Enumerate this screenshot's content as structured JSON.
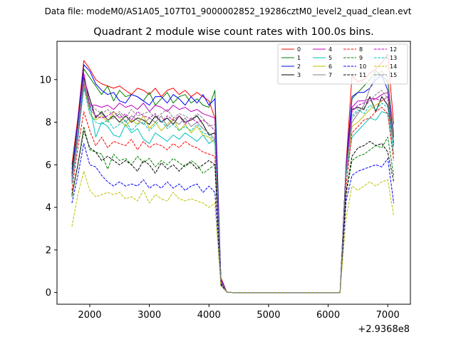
{
  "chart_data": {
    "type": "line",
    "suptitle": "Data file: modeM0/AS1A05_107T01_9000002852_19286cztM0_level2_quad_clean.evt",
    "title": "Quadrant 2 module wise count rates with 100.0s bins.",
    "xlabel": "",
    "ylabel": "",
    "x_offset_label": "+2.9368e8",
    "xlim": [
      1450,
      7380
    ],
    "ylim": [
      -0.55,
      11.8
    ],
    "xticks": [
      2000,
      3000,
      4000,
      5000,
      6000,
      7000
    ],
    "yticks": [
      0,
      2,
      4,
      6,
      8,
      10
    ],
    "legend_position": "upper-right",
    "legend_columns": 4,
    "x": [
      1700,
      1800,
      1900,
      2000,
      2100,
      2200,
      2300,
      2400,
      2500,
      2600,
      2700,
      2800,
      2900,
      3000,
      3100,
      3200,
      3300,
      3400,
      3500,
      3600,
      3700,
      3800,
      3900,
      4000,
      4100,
      4200,
      4300,
      4400,
      4500,
      4600,
      4700,
      4800,
      4900,
      5000,
      5100,
      5200,
      5300,
      5400,
      5500,
      5600,
      5700,
      5800,
      5900,
      6000,
      6100,
      6200,
      6300,
      6400,
      6500,
      6600,
      6700,
      6800,
      6900,
      7000,
      7100
    ],
    "series": [
      {
        "name": "0",
        "color": "#ff0000",
        "style": "solid",
        "values": [
          6.0,
          8.2,
          10.9,
          10.5,
          10.0,
          9.8,
          9.7,
          9.6,
          9.7,
          9.5,
          9.3,
          9.6,
          9.5,
          9.3,
          9.6,
          9.2,
          9.5,
          9.6,
          9.3,
          9.5,
          9.2,
          9.4,
          9.2,
          9.0,
          8.2,
          0.7,
          0.02,
          0,
          0,
          0,
          0,
          0,
          0,
          0,
          0,
          0,
          0,
          0,
          0,
          0,
          0,
          0,
          0,
          0,
          0,
          0,
          6.0,
          10.2,
          9.9,
          10.0,
          10.3,
          10.5,
          10.8,
          11.2,
          7.9
        ]
      },
      {
        "name": "1",
        "color": "#008000",
        "style": "solid",
        "values": [
          5.8,
          8.0,
          10.5,
          10.1,
          9.7,
          9.3,
          9.7,
          9.0,
          9.5,
          9.2,
          9.3,
          9.2,
          9.0,
          9.4,
          8.8,
          9.1,
          9.4,
          8.9,
          9.2,
          9.3,
          8.9,
          9.1,
          8.8,
          8.7,
          9.5,
          0.6,
          0.02,
          0,
          0,
          0,
          0,
          0,
          0,
          0,
          0,
          0,
          0,
          0,
          0,
          0,
          0,
          0,
          0,
          0,
          0,
          0,
          5.9,
          9.1,
          9.4,
          9.7,
          10.0,
          10.4,
          10.2,
          9.9,
          7.5
        ]
      },
      {
        "name": "2",
        "color": "#0000ff",
        "style": "solid",
        "values": [
          5.6,
          8.0,
          10.7,
          10.4,
          9.8,
          9.5,
          9.3,
          9.4,
          9.0,
          8.9,
          9.3,
          9.2,
          9.0,
          8.8,
          9.2,
          9.2,
          8.9,
          9.3,
          9.1,
          8.8,
          9.2,
          8.9,
          9.3,
          8.8,
          9.1,
          0.6,
          0.02,
          0,
          0,
          0,
          0,
          0,
          0,
          0,
          0,
          0,
          0,
          0,
          0,
          0,
          0,
          0,
          0,
          0,
          0,
          0,
          5.9,
          9.2,
          9.4,
          9.4,
          9.6,
          10.0,
          10.2,
          9.5,
          7.3
        ]
      },
      {
        "name": "3",
        "color": "#000000",
        "style": "solid",
        "values": [
          5.5,
          7.6,
          10.1,
          9.1,
          8.2,
          8.5,
          8.1,
          8.3,
          8.0,
          8.3,
          8.0,
          8.2,
          8.1,
          7.9,
          8.3,
          8.0,
          8.2,
          7.9,
          8.3,
          8.0,
          8.1,
          8.3,
          7.9,
          7.4,
          7.5,
          0.5,
          0.02,
          0,
          0,
          0,
          0,
          0,
          0,
          0,
          0,
          0,
          0,
          0,
          0,
          0,
          0,
          0,
          0,
          0,
          0,
          0,
          5.7,
          8.6,
          8.7,
          8.6,
          9.2,
          8.5,
          9.2,
          8.8,
          7.0
        ]
      },
      {
        "name": "4",
        "color": "#bf00bf",
        "style": "solid",
        "values": [
          5.4,
          7.5,
          10.3,
          8.8,
          8.8,
          8.7,
          8.8,
          8.6,
          8.9,
          8.7,
          8.8,
          8.6,
          8.9,
          8.5,
          8.8,
          8.7,
          8.5,
          8.8,
          8.6,
          8.7,
          8.5,
          8.6,
          8.4,
          8.3,
          8.2,
          0.55,
          0.02,
          0,
          0,
          0,
          0,
          0,
          0,
          0,
          0,
          0,
          0,
          0,
          0,
          0,
          0,
          0,
          0,
          0,
          0,
          0,
          5.8,
          8.7,
          9.0,
          9.0,
          9.1,
          9.1,
          9.3,
          9.4,
          7.0
        ]
      },
      {
        "name": "5",
        "color": "#00bfbf",
        "style": "solid",
        "values": [
          5.2,
          7.4,
          9.6,
          8.8,
          7.3,
          8.0,
          7.8,
          7.4,
          7.3,
          7.9,
          7.5,
          7.7,
          7.2,
          7.0,
          7.5,
          7.3,
          7.1,
          7.4,
          7.2,
          7.5,
          7.3,
          7.1,
          7.4,
          7.0,
          7.2,
          0.5,
          0.02,
          0,
          0,
          0,
          0,
          0,
          0,
          0,
          0,
          0,
          0,
          0,
          0,
          0,
          0,
          0,
          0,
          0,
          0,
          0,
          5.5,
          7.3,
          7.6,
          7.9,
          8.2,
          8.1,
          8.5,
          8.4,
          6.5
        ]
      },
      {
        "name": "6",
        "color": "#bfbf00",
        "style": "solid",
        "values": [
          5.3,
          7.3,
          9.8,
          8.4,
          8.1,
          8.3,
          8.0,
          8.5,
          8.2,
          7.8,
          8.1,
          7.9,
          8.3,
          7.7,
          8.0,
          7.6,
          7.9,
          8.2,
          7.6,
          7.9,
          7.5,
          7.8,
          7.4,
          7.3,
          7.0,
          0.5,
          0.02,
          0,
          0,
          0,
          0,
          0,
          0,
          0,
          0,
          0,
          0,
          0,
          0,
          0,
          0,
          0,
          0,
          0,
          0,
          0,
          5.6,
          7.8,
          8.0,
          8.3,
          8.6,
          8.8,
          9.0,
          9.2,
          7.1
        ]
      },
      {
        "name": "7",
        "color": "#808080",
        "style": "solid",
        "values": [
          5.4,
          7.6,
          10.0,
          8.6,
          8.3,
          8.4,
          8.1,
          8.2,
          8.4,
          8.0,
          8.3,
          8.1,
          7.9,
          8.2,
          8.0,
          8.3,
          7.8,
          8.1,
          7.9,
          8.2,
          7.8,
          8.0,
          7.7,
          7.5,
          7.2,
          0.5,
          0.02,
          0,
          0,
          0,
          0,
          0,
          0,
          0,
          0,
          0,
          0,
          0,
          0,
          0,
          0,
          0,
          0,
          0,
          0,
          0,
          5.7,
          8.0,
          8.4,
          8.8,
          9.6,
          10.2,
          10.4,
          10.1,
          7.4
        ]
      },
      {
        "name": "8",
        "color": "#ff0000",
        "style": "dashed",
        "values": [
          4.8,
          6.8,
          8.5,
          7.6,
          6.9,
          7.3,
          6.8,
          7.1,
          7.0,
          6.9,
          7.2,
          6.7,
          7.1,
          6.8,
          7.0,
          6.9,
          6.7,
          7.0,
          6.8,
          7.1,
          6.9,
          6.8,
          6.6,
          6.5,
          6.4,
          0.45,
          0.02,
          0,
          0,
          0,
          0,
          0,
          0,
          0,
          0,
          0,
          0,
          0,
          0,
          0,
          0,
          0,
          0,
          0,
          0,
          0,
          5.0,
          7.5,
          7.8,
          8.1,
          8.2,
          8.5,
          8.7,
          8.4,
          6.2
        ]
      },
      {
        "name": "9",
        "color": "#008000",
        "style": "dashed",
        "values": [
          4.5,
          6.0,
          7.8,
          6.7,
          6.6,
          6.5,
          5.8,
          6.5,
          6.2,
          6.3,
          6.0,
          6.4,
          6.1,
          6.3,
          5.9,
          6.2,
          6.0,
          6.3,
          6.1,
          5.9,
          6.2,
          6.0,
          5.6,
          5.8,
          6.0,
          0.4,
          0.02,
          0,
          0,
          0,
          0,
          0,
          0,
          0,
          0,
          0,
          0,
          0,
          0,
          0,
          0,
          0,
          0,
          0,
          0,
          0,
          4.6,
          6.2,
          6.4,
          6.5,
          6.7,
          6.9,
          6.8,
          7.3,
          5.5
        ]
      },
      {
        "name": "10",
        "color": "#0000ff",
        "style": "dashed",
        "values": [
          4.2,
          5.5,
          7.0,
          6.0,
          5.9,
          5.5,
          5.2,
          5.0,
          5.2,
          5.0,
          5.1,
          5.0,
          5.3,
          4.9,
          5.1,
          4.9,
          5.2,
          4.9,
          5.1,
          4.8,
          5.0,
          5.1,
          4.7,
          5.0,
          4.7,
          0.35,
          0.02,
          0,
          0,
          0,
          0,
          0,
          0,
          0,
          0,
          0,
          0,
          0,
          0,
          0,
          0,
          0,
          0,
          0,
          0,
          0,
          4.3,
          5.5,
          5.7,
          5.8,
          5.9,
          6.0,
          5.9,
          6.3,
          4.2
        ]
      },
      {
        "name": "11",
        "color": "#000000",
        "style": "dashed",
        "values": [
          4.6,
          6.0,
          7.6,
          6.8,
          6.6,
          6.2,
          6.4,
          6.2,
          6.0,
          6.2,
          6.0,
          5.7,
          6.2,
          6.0,
          5.6,
          6.1,
          5.8,
          6.0,
          5.7,
          6.0,
          6.1,
          5.8,
          6.0,
          6.2,
          6.0,
          0.4,
          0.02,
          0,
          0,
          0,
          0,
          0,
          0,
          0,
          0,
          0,
          0,
          0,
          0,
          0,
          0,
          0,
          0,
          0,
          0,
          0,
          4.7,
          6.4,
          6.8,
          6.9,
          7.1,
          6.9,
          7.0,
          6.6,
          5.2
        ]
      },
      {
        "name": "12",
        "color": "#bf00bf",
        "style": "dashed",
        "values": [
          5.2,
          7.2,
          9.8,
          8.8,
          8.3,
          8.2,
          8.3,
          8.5,
          8.2,
          8.4,
          8.1,
          8.5,
          8.3,
          8.2,
          8.4,
          8.0,
          8.3,
          8.1,
          8.3,
          7.9,
          8.2,
          8.0,
          8.1,
          7.9,
          7.6,
          0.5,
          0.02,
          0,
          0,
          0,
          0,
          0,
          0,
          0,
          0,
          0,
          0,
          0,
          0,
          0,
          0,
          0,
          0,
          0,
          0,
          0,
          5.6,
          8.5,
          8.8,
          8.9,
          9.0,
          9.1,
          9.0,
          9.2,
          6.9
        ]
      },
      {
        "name": "13",
        "color": "#00bfbf",
        "style": "dashed",
        "values": [
          5.1,
          7.2,
          9.6,
          8.4,
          8.0,
          7.9,
          8.1,
          7.7,
          7.9,
          8.1,
          7.6,
          7.9,
          8.0,
          7.6,
          7.9,
          8.1,
          7.7,
          7.9,
          7.6,
          7.8,
          7.6,
          7.9,
          7.5,
          7.4,
          7.1,
          0.5,
          0.02,
          0,
          0,
          0,
          0,
          0,
          0,
          0,
          0,
          0,
          0,
          0,
          0,
          0,
          0,
          0,
          0,
          0,
          0,
          0,
          5.5,
          8.3,
          8.6,
          8.4,
          8.8,
          8.6,
          8.9,
          8.7,
          6.8
        ]
      },
      {
        "name": "14",
        "color": "#bfbf00",
        "style": "dashed",
        "values": [
          3.1,
          4.6,
          5.7,
          4.8,
          4.5,
          4.6,
          4.7,
          4.6,
          4.7,
          4.4,
          4.5,
          4.3,
          4.8,
          4.2,
          4.6,
          4.4,
          4.3,
          4.7,
          4.4,
          4.3,
          4.4,
          4.3,
          4.2,
          4.0,
          4.2,
          0.3,
          0.02,
          0,
          0,
          0,
          0,
          0,
          0,
          0,
          0,
          0,
          0,
          0,
          0,
          0,
          0,
          0,
          0,
          0,
          0,
          0,
          3.5,
          5.0,
          4.8,
          5.0,
          5.2,
          5.0,
          5.2,
          5.3,
          3.6
        ]
      },
      {
        "name": "15",
        "color": "#808080",
        "style": "dashed",
        "values": [
          5.3,
          7.4,
          9.9,
          8.9,
          8.6,
          8.4,
          8.6,
          8.3,
          8.5,
          8.2,
          8.6,
          8.3,
          8.4,
          8.5,
          8.2,
          8.4,
          8.6,
          8.2,
          8.4,
          8.3,
          8.1,
          8.4,
          8.2,
          7.8,
          7.9,
          0.5,
          0.02,
          0,
          0,
          0,
          0,
          0,
          0,
          0,
          0,
          0,
          0,
          0,
          0,
          0,
          0,
          0,
          0,
          0,
          0,
          0,
          5.7,
          8.2,
          8.5,
          8.7,
          9.0,
          9.3,
          9.5,
          9.1,
          7.0
        ]
      }
    ]
  }
}
